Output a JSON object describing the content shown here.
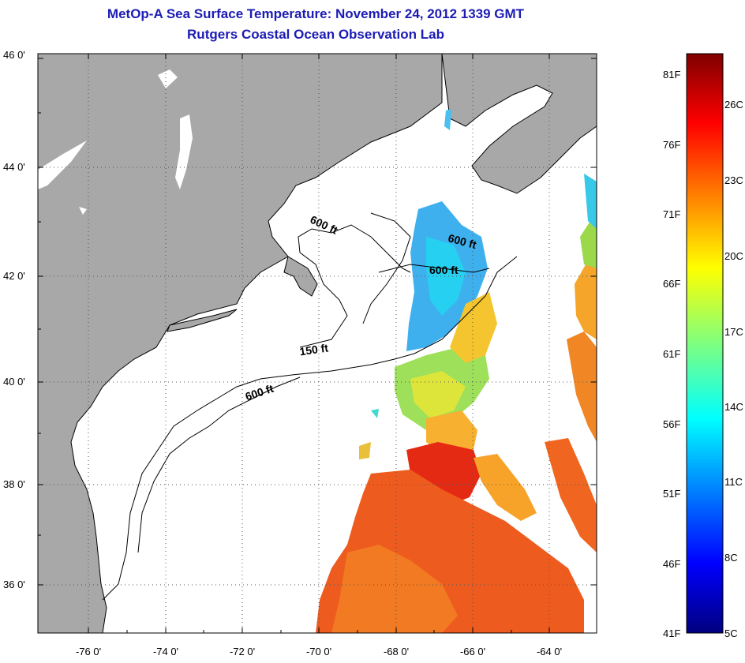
{
  "title": {
    "line1": "MetOp-A Sea Surface Temperature:  November 24, 2012 1339 GMT",
    "line2": "Rutgers Coastal Ocean Observation Lab"
  },
  "axes": {
    "lat_labels": [
      "46 0'",
      "44 0'",
      "42 0'",
      "40 0'",
      "38 0'",
      "36 0'"
    ],
    "lon_labels": [
      "-76 0'",
      "-74 0'",
      "-72 0'",
      "-70 0'",
      "-68 0'",
      "-66 0'",
      "-64 0'"
    ]
  },
  "isobaths": [
    {
      "label": "600 ft"
    },
    {
      "label": "600 ft"
    },
    {
      "label": "600 ft"
    },
    {
      "label": "150 ft"
    },
    {
      "label": "600 ft"
    }
  ],
  "colorbar": {
    "fahrenheit_labels": [
      "81F",
      "76F",
      "71F",
      "66F",
      "61F",
      "56F",
      "51F",
      "46F",
      "41F"
    ],
    "celsius_labels": [
      "26C",
      "23C",
      "20C",
      "17C",
      "14C",
      "11C",
      "8C",
      "5C"
    ],
    "range_f": [
      41,
      83
    ],
    "range_c": [
      5,
      28
    ]
  },
  "colors": {
    "title": "#1c1cb4",
    "land": "#a8a8a8",
    "water": "#ffffff"
  }
}
